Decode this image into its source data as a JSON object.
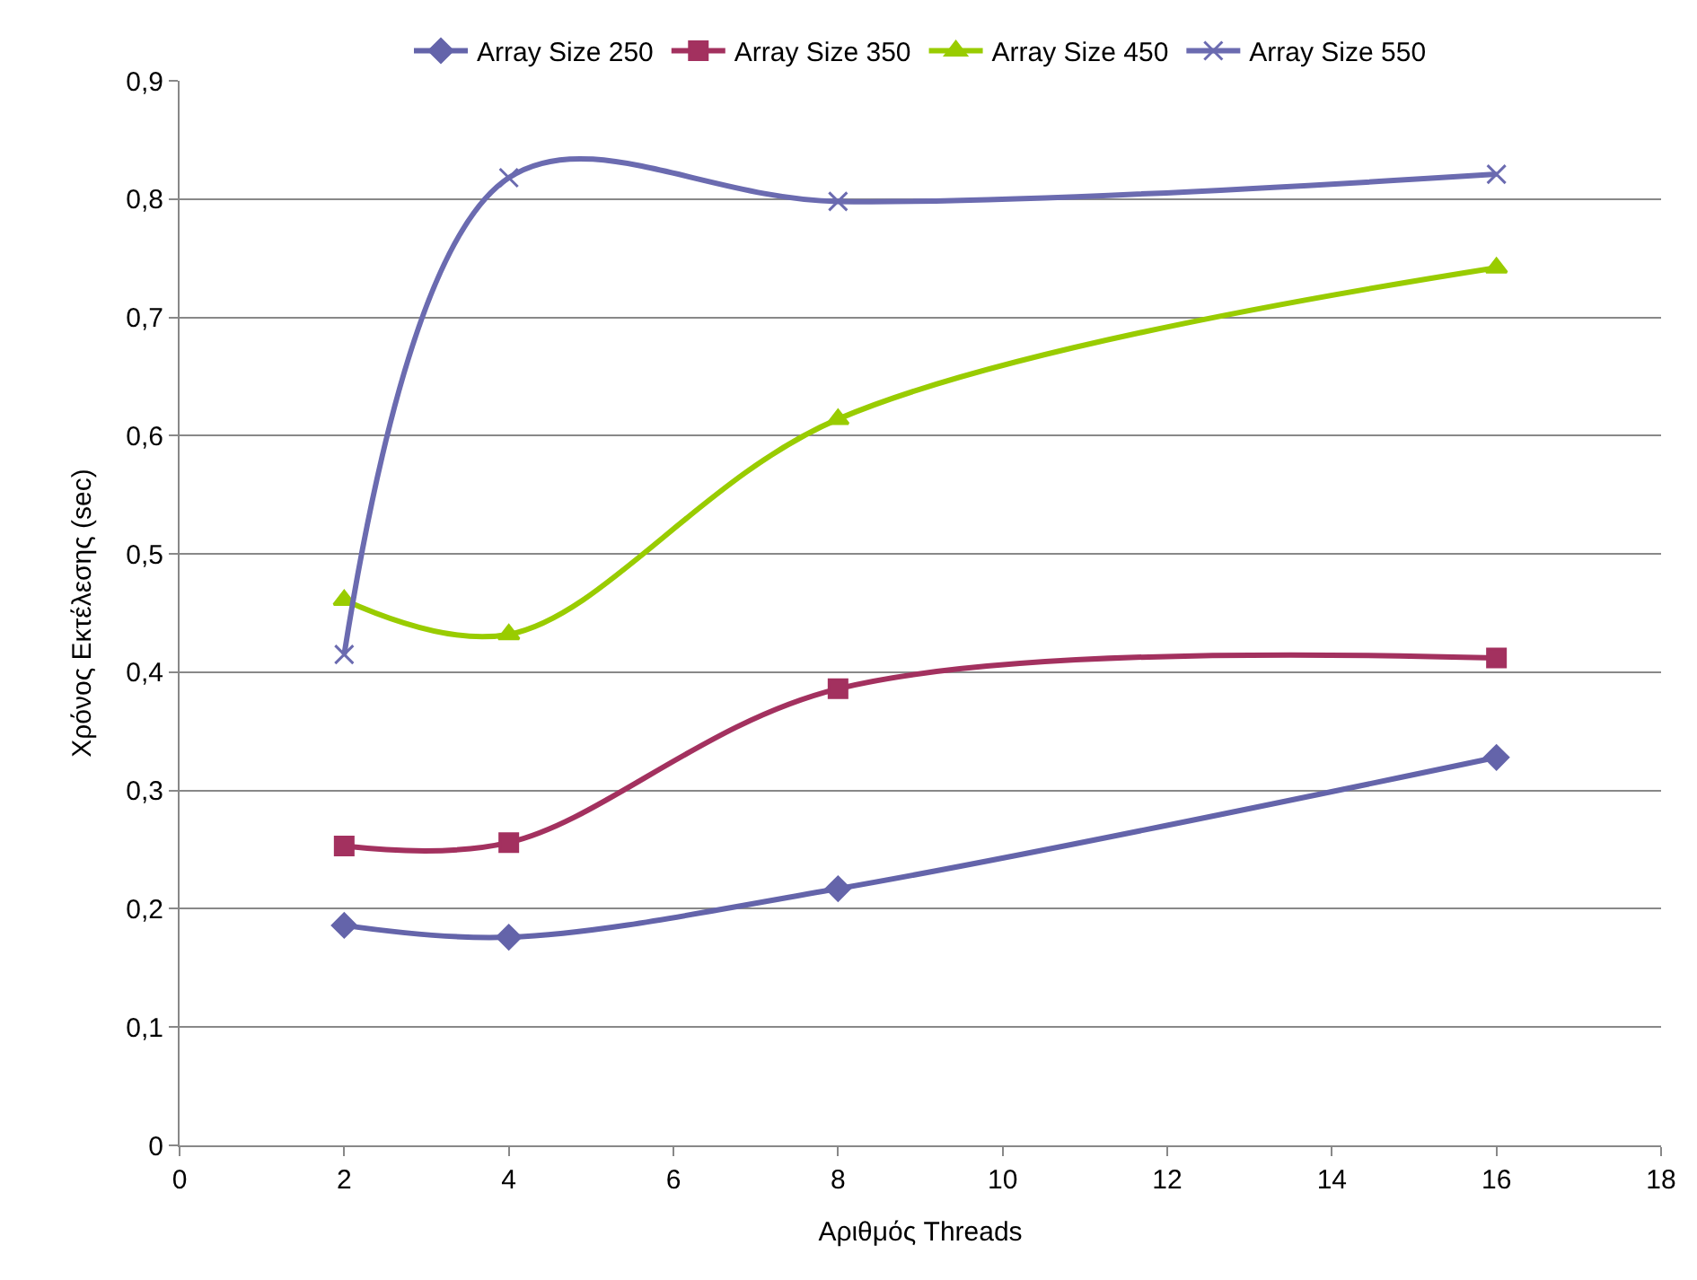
{
  "chart_data": {
    "type": "line",
    "xlabel": "Αριθμός Threads",
    "ylabel": "Χρόνος Εκτέλεσης (sec)",
    "x": [
      2,
      4,
      8,
      16
    ],
    "series": [
      {
        "name": "Array Size 250",
        "color": "#6464aa",
        "marker": "diamond",
        "values": [
          0.186,
          0.176,
          0.217,
          0.328
        ]
      },
      {
        "name": "Array Size 350",
        "color": "#a3315f",
        "marker": "square",
        "values": [
          0.253,
          0.256,
          0.386,
          0.412
        ]
      },
      {
        "name": "Array Size 450",
        "color": "#99cc00",
        "marker": "triangle",
        "values": [
          0.461,
          0.432,
          0.614,
          0.742
        ]
      },
      {
        "name": "Array Size 550",
        "color": "#6b6bb0",
        "marker": "cross",
        "values": [
          0.415,
          0.818,
          0.798,
          0.821
        ]
      }
    ],
    "xlim": [
      0,
      18
    ],
    "xticks": [
      0,
      2,
      4,
      6,
      8,
      10,
      12,
      14,
      16,
      18
    ],
    "ylim": [
      0,
      0.9
    ],
    "yticks": [
      {
        "value": 0,
        "label": "0"
      },
      {
        "value": 0.1,
        "label": "0,1"
      },
      {
        "value": 0.2,
        "label": "0,2"
      },
      {
        "value": 0.3,
        "label": "0,3"
      },
      {
        "value": 0.4,
        "label": "0,4"
      },
      {
        "value": 0.5,
        "label": "0,5"
      },
      {
        "value": 0.6,
        "label": "0,6"
      },
      {
        "value": 0.7,
        "label": "0,7"
      },
      {
        "value": 0.8,
        "label": "0,8"
      },
      {
        "value": 0.9,
        "label": "0,9"
      }
    ],
    "grid": "y",
    "legend": "top",
    "line_style": "solid"
  }
}
